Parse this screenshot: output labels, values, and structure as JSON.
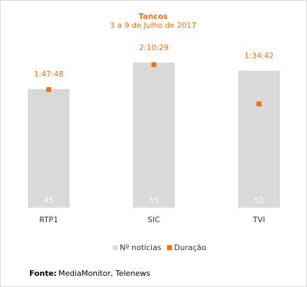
{
  "chart_data": {
    "type": "bar",
    "title": "Tancos",
    "subtitle": "3 a 9 de Julho de 2017",
    "categories": [
      "RTP1",
      "SIC",
      "TVI"
    ],
    "series": [
      {
        "name": "Nº notícias",
        "color": "#d9d9d9",
        "values": [
          45,
          55,
          52
        ]
      },
      {
        "name": "Duração",
        "color": "#f07010",
        "axis": "y2",
        "type": "scatter",
        "values": [
          6468,
          7829,
          5682
        ],
        "value_labels": [
          "1:47:48",
          "2:10:29",
          "1:34:42"
        ]
      }
    ],
    "ylim": [
      0,
      55
    ],
    "y2lim": [
      0,
      7940
    ],
    "grid": false,
    "legend": "bottom",
    "source_label": "Fonte:",
    "source": "MediaMonitor, Telenews"
  }
}
